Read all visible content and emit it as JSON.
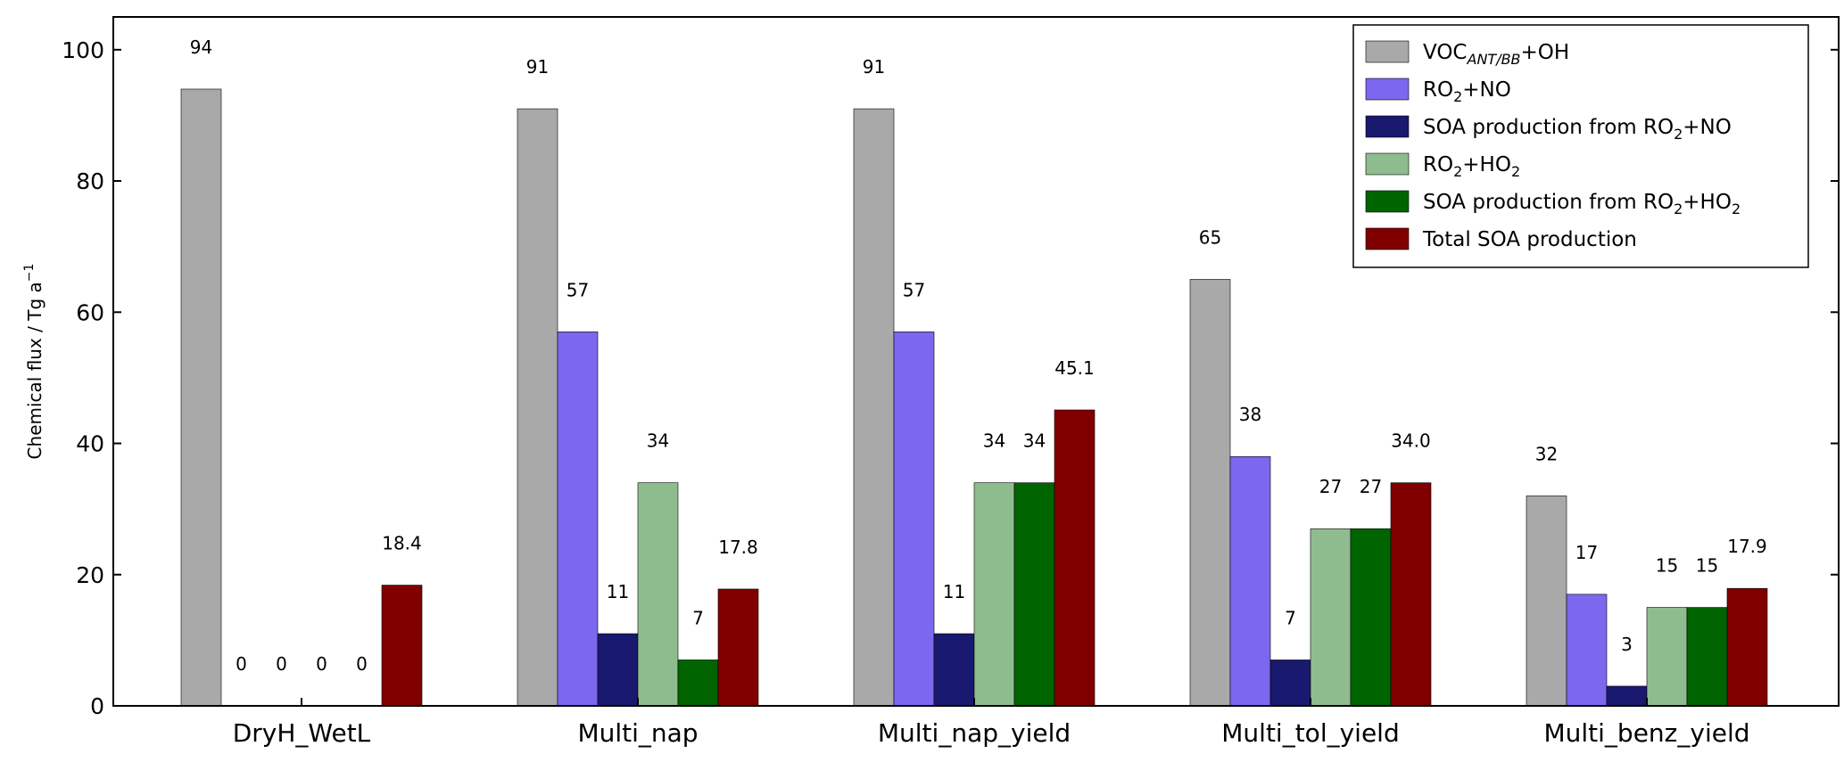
{
  "chart_data": {
    "type": "bar",
    "title": "",
    "xlabel": "",
    "ylabel": "Chemical flux / Tg a",
    "ylabel_sup": "−1",
    "ylim": [
      0,
      105
    ],
    "yticks": [
      0,
      20,
      40,
      60,
      80,
      100
    ],
    "grid": false,
    "legend_position": "top-right",
    "categories": [
      "DryH_WetL",
      "Multi_nap",
      "Multi_nap_yield",
      "Multi_tol_yield",
      "Multi_benz_yield"
    ],
    "series": [
      {
        "name": "VOC+OH",
        "name_main": "VOC",
        "name_sub": "ANT/BB",
        "name_tail": "+OH",
        "color": "#a9a9a9",
        "values": [
          94,
          91,
          91,
          65,
          32
        ],
        "labels": [
          "94",
          "91",
          "91",
          "65",
          "32"
        ]
      },
      {
        "name": "RO2+NO",
        "name_main": "RO",
        "name_sub": "2",
        "name_tail": "+NO",
        "color": "#7b68ee",
        "values": [
          0,
          57,
          57,
          38,
          17
        ],
        "labels": [
          "0",
          "57",
          "57",
          "38",
          "17"
        ]
      },
      {
        "name": "SOA production from RO2+NO",
        "name_main": "SOA production from RO",
        "name_sub": "2",
        "name_tail": "+NO",
        "color": "#191970",
        "values": [
          0,
          11,
          11,
          7,
          3
        ],
        "labels": [
          "0",
          "11",
          "11",
          "7",
          "3"
        ]
      },
      {
        "name": "RO2+HO2",
        "name_main": "RO",
        "name_sub": "2",
        "name_tail": "+HO",
        "name_sub2": "2",
        "color": "#8fbc8f",
        "values": [
          0,
          34,
          34,
          27,
          15
        ],
        "labels": [
          "0",
          "34",
          "34",
          "27",
          "15"
        ]
      },
      {
        "name": "SOA production from RO2+HO2",
        "name_main": "SOA production from RO",
        "name_sub": "2",
        "name_tail": "+HO",
        "name_sub2": "2",
        "color": "#006400",
        "values": [
          0,
          7,
          34,
          27,
          15
        ],
        "labels": [
          "0",
          "7",
          "34",
          "27",
          "15"
        ]
      },
      {
        "name": "Total SOA production",
        "name_main": "Total SOA production",
        "color": "#800000",
        "values": [
          18.4,
          17.8,
          45.1,
          34.0,
          17.9
        ],
        "labels": [
          "18.4",
          "17.8",
          "45.1",
          "34.0",
          "17.9"
        ]
      }
    ]
  }
}
